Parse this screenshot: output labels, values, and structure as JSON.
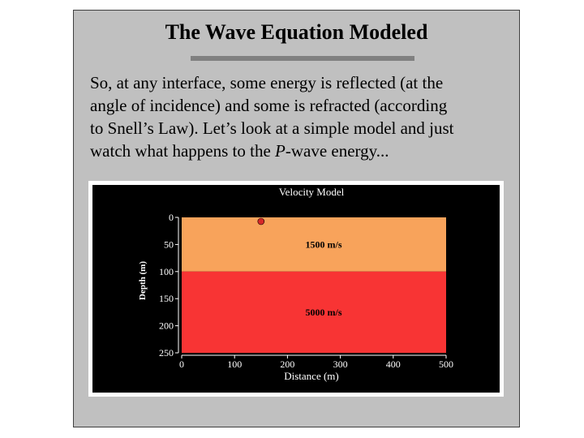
{
  "slide": {
    "title": "The Wave Equation Modeled",
    "body_lines": [
      "So, at any interface, some energy is reflected (at the",
      "angle of incidence) and some is refracted (according",
      "to Snell’s Law).  Let’s look at a simple model and just"
    ],
    "body_last_pre": "watch what happens to the ",
    "body_last_em": "P",
    "body_last_post": "-wave energy..."
  },
  "chart_data": {
    "type": "heatmap",
    "title": "Velocity Model",
    "xlabel": "Distance (m)",
    "ylabel": "Depth (m)",
    "xlim": [
      0,
      500
    ],
    "ylim": [
      0,
      250
    ],
    "y_inverted": true,
    "x_ticks": [
      "0",
      "100",
      "200",
      "300",
      "400",
      "500"
    ],
    "y_ticks": [
      "0",
      "50",
      "100",
      "150",
      "200",
      "250"
    ],
    "model_extent": {
      "x": [
        0,
        500
      ],
      "y": [
        0,
        250
      ]
    },
    "layers": [
      {
        "label": "1500 m/s",
        "velocity": 1500,
        "top": 0,
        "bottom": 100,
        "color": "#f8a35b"
      },
      {
        "label": "5000 m/s",
        "velocity": 5000,
        "top": 100,
        "bottom": 250,
        "color": "#f83434"
      }
    ],
    "source": {
      "x": 150,
      "y": 3,
      "color": "#d62828"
    }
  }
}
